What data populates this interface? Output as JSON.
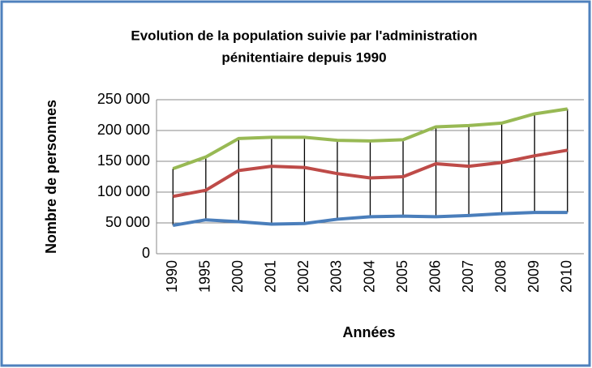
{
  "chart_data": {
    "type": "line",
    "title": "Evolution de la population suivie par l'administration",
    "subtitle": "pénitentiaire depuis 1990",
    "x_label": "Années",
    "y_label": "Nombre de personnes",
    "categories": [
      "1990",
      "1995",
      "2000",
      "2001",
      "2002",
      "2003",
      "2004",
      "2005",
      "2006",
      "2007",
      "2008",
      "2009",
      "2010"
    ],
    "series": [
      {
        "color": "#4a7ebb",
        "values": [
          46000,
          55000,
          52000,
          48000,
          49000,
          56000,
          60000,
          61000,
          60000,
          62000,
          65000,
          67000,
          67000
        ]
      },
      {
        "color": "#be4b48",
        "values": [
          93000,
          103000,
          135000,
          142000,
          140000,
          130000,
          123000,
          125000,
          146000,
          142000,
          148000,
          159000,
          168000
        ]
      },
      {
        "color": "#98b954",
        "values": [
          138000,
          157000,
          187000,
          189000,
          189000,
          184000,
          183000,
          185000,
          206000,
          208000,
          212000,
          227000,
          235000
        ]
      }
    ],
    "ylim": [
      0,
      250000
    ],
    "yticks": [
      0,
      {
        "value": 50000,
        "label": "50 000"
      },
      {
        "value": 100000,
        "label": "100 000"
      },
      {
        "value": 150000,
        "label": "150 000"
      },
      {
        "value": 200000,
        "label": "200 000"
      },
      {
        "value": 250000,
        "label": "250 000"
      }
    ],
    "grid": true,
    "high_low_lines": true
  }
}
